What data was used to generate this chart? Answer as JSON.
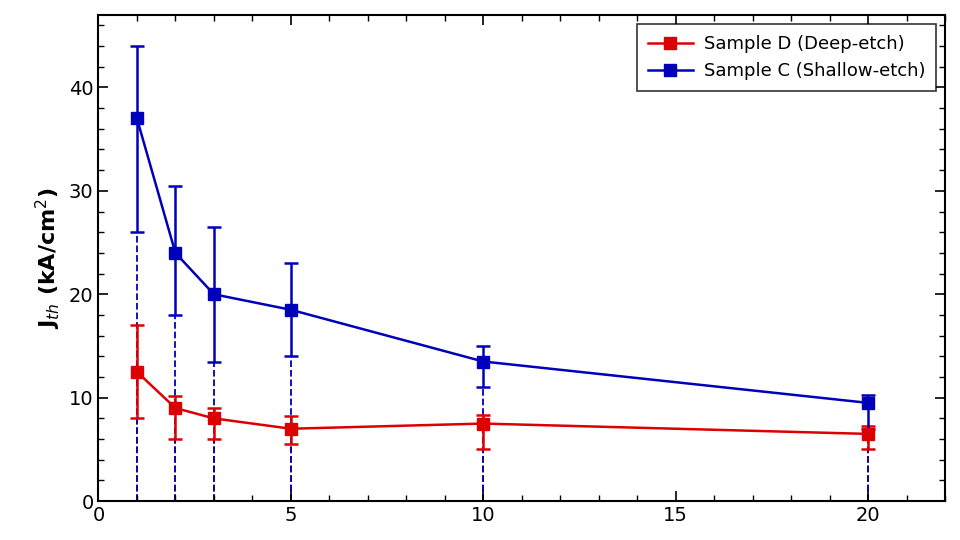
{
  "red_x": [
    1,
    2,
    3,
    5,
    10,
    20
  ],
  "red_y": [
    12.5,
    9.0,
    8.0,
    7.0,
    7.5,
    6.5
  ],
  "red_yerr_upper": [
    4.5,
    1.2,
    1.0,
    1.2,
    0.8,
    0.8
  ],
  "red_yerr_lower": [
    4.5,
    3.0,
    2.0,
    1.5,
    2.5,
    1.5
  ],
  "blue_x": [
    1,
    2,
    3,
    5,
    10,
    20
  ],
  "blue_y": [
    37.0,
    24.0,
    20.0,
    18.5,
    13.5,
    9.5
  ],
  "blue_yerr_upper": [
    7.0,
    6.5,
    6.5,
    4.5,
    1.5,
    0.8
  ],
  "blue_yerr_lower": [
    11.0,
    6.0,
    6.5,
    4.5,
    2.5,
    2.5
  ],
  "red_color": "#DD0000",
  "blue_color": "#0000BB",
  "ylabel": "J$_{th}$ (kA/cm$^2$)",
  "xlim": [
    0,
    22
  ],
  "ylim": [
    0,
    47
  ],
  "yticks": [
    0,
    10,
    20,
    30,
    40
  ],
  "xticks": [
    0,
    5,
    10,
    15,
    20
  ],
  "legend_labels": [
    "Sample D (Deep-etch)",
    "Sample C (Shallow-etch)"
  ],
  "marker": "s",
  "markersize": 9,
  "linewidth": 1.8,
  "capsize": 5,
  "title_fontsize": 15,
  "label_fontsize": 16,
  "tick_fontsize": 14,
  "legend_fontsize": 13
}
